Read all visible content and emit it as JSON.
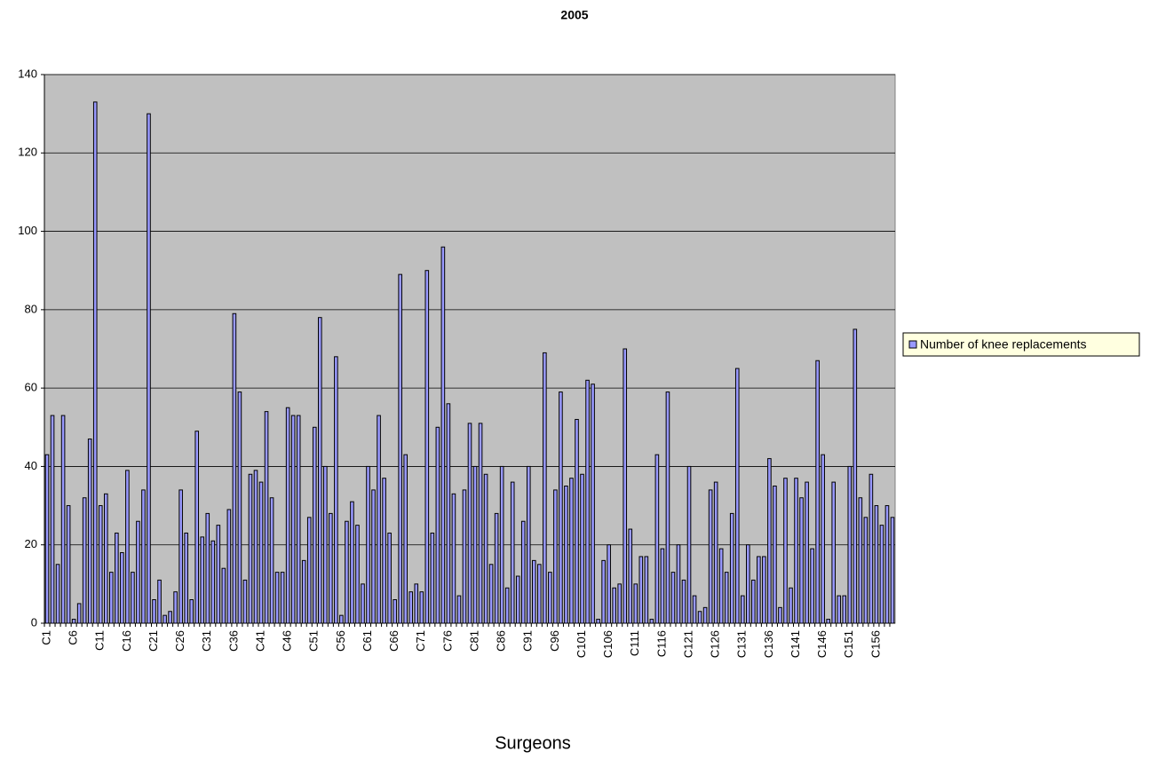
{
  "chart_data": {
    "type": "bar",
    "title": "2005",
    "x_label": "Surgeons",
    "categories": [
      "C1",
      null,
      null,
      null,
      null,
      "C6",
      null,
      null,
      null,
      null,
      "C11",
      null,
      null,
      null,
      null,
      "C16",
      null,
      null,
      null,
      null,
      "C21",
      null,
      null,
      null,
      null,
      "C26",
      null,
      null,
      null,
      null,
      "C31",
      null,
      null,
      null,
      null,
      "C36",
      null,
      null,
      null,
      null,
      "C41",
      null,
      null,
      null,
      null,
      "C46",
      null,
      null,
      null,
      null,
      "C51",
      null,
      null,
      null,
      null,
      "C56",
      null,
      null,
      null,
      null,
      "C61",
      null,
      null,
      null,
      null,
      "C66",
      null,
      null,
      null,
      null,
      "C71",
      null,
      null,
      null,
      null,
      "C76",
      null,
      null,
      null,
      null,
      "C81",
      null,
      null,
      null,
      null,
      "C86",
      null,
      null,
      null,
      null,
      "C91",
      null,
      null,
      null,
      null,
      "C96",
      null,
      null,
      null,
      null,
      "C101",
      null,
      null,
      null,
      null,
      "C106",
      null,
      null,
      null,
      null,
      "C111",
      null,
      null,
      null,
      null,
      "C116",
      null,
      null,
      null,
      null,
      "C121",
      null,
      null,
      null,
      null,
      "C126",
      null,
      null,
      null,
      null,
      "C131",
      null,
      null,
      null,
      null,
      "C136",
      null,
      null,
      null,
      null,
      "C141",
      null,
      null,
      null,
      null,
      "C146",
      null,
      null,
      null,
      null,
      "C151",
      null,
      null,
      null,
      null,
      "C156",
      null,
      null,
      null
    ],
    "series": [
      {
        "name": "Number of knee replacements",
        "color": "#9999ff",
        "values": [
          43,
          53,
          15,
          53,
          30,
          1,
          5,
          32,
          47,
          133,
          30,
          33,
          13,
          23,
          18,
          39,
          13,
          26,
          34,
          130,
          6,
          11,
          2,
          3,
          8,
          34,
          23,
          6,
          49,
          22,
          28,
          21,
          25,
          14,
          29,
          79,
          59,
          11,
          38,
          39,
          36,
          54,
          32,
          13,
          13,
          55,
          53,
          53,
          16,
          27,
          50,
          78,
          40,
          28,
          68,
          2,
          26,
          31,
          25,
          10,
          40,
          34,
          53,
          37,
          23,
          6,
          89,
          43,
          8,
          10,
          8,
          90,
          23,
          50,
          96,
          56,
          33,
          7,
          34,
          51,
          40,
          51,
          38,
          15,
          28,
          40,
          9,
          36,
          12,
          26,
          40,
          16,
          15,
          69,
          13,
          34,
          59,
          35,
          37,
          52,
          38,
          62,
          61,
          1,
          16,
          20,
          9,
          10,
          70,
          24,
          10,
          17,
          17,
          1,
          43,
          19,
          59,
          13,
          20,
          11,
          40,
          7,
          3,
          4,
          34,
          36,
          19,
          13,
          28,
          65,
          7,
          20,
          11,
          17,
          17,
          42,
          35,
          4,
          37,
          9,
          37,
          32,
          36,
          19,
          67,
          43,
          1,
          36,
          7,
          7,
          40,
          75,
          32,
          27,
          38,
          30,
          25,
          30,
          27
        ]
      }
    ],
    "ylim": [
      0,
      140
    ],
    "yticks": [
      0,
      20,
      40,
      60,
      80,
      100,
      120,
      140
    ],
    "grid": true,
    "legend": "right"
  }
}
